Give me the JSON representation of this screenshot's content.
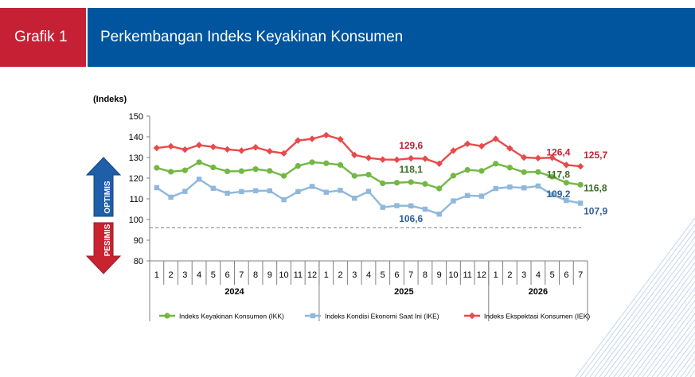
{
  "header": {
    "tag": "Grafik 1",
    "title": "Perkembangan Indeks Keyakinan Konsumen"
  },
  "chart_data": {
    "type": "line",
    "title": "Perkembangan Indeks Keyakinan Konsumen",
    "ylabel": "(Indeks)",
    "ylim": [
      80,
      150
    ],
    "yticks": [
      80,
      90,
      100,
      110,
      120,
      130,
      140,
      150
    ],
    "optimism_threshold": 100,
    "optimis_label": "OPTIMIS",
    "pesimis_label": "PESIMIS",
    "x_months": [
      "1",
      "2",
      "3",
      "4",
      "5",
      "6",
      "7",
      "8",
      "9",
      "10",
      "11",
      "12",
      "1",
      "2",
      "3",
      "4",
      "5",
      "6",
      "7",
      "8",
      "9",
      "10",
      "11",
      "12",
      "1",
      "2",
      "3",
      "4",
      "5",
      "6",
      "7"
    ],
    "years": [
      {
        "label": "2024",
        "count": 12
      },
      {
        "label": "2025",
        "count": 12
      },
      {
        "label": "2026",
        "count": 7
      }
    ],
    "grid": false,
    "legend_position": "bottom",
    "series": [
      {
        "name": "Indeks Keyakinan Konsumen (IKK)",
        "color": "#72b843",
        "marker": "circle",
        "values": [
          125.0,
          123.1,
          123.8,
          127.7,
          125.2,
          123.3,
          123.4,
          124.4,
          123.5,
          121.1,
          125.9,
          127.7,
          127.2,
          126.4,
          121.1,
          121.7,
          117.5,
          117.8,
          118.1,
          117.2,
          115.0,
          121.2,
          124.0,
          123.5,
          127.0,
          125.1,
          122.9,
          123.0,
          120.7,
          117.8,
          116.8
        ]
      },
      {
        "name": "Indeks Kondisi Ekonomi Saat Ini (IKE)",
        "color": "#8fb8dc",
        "marker": "square",
        "values": [
          115.4,
          110.8,
          113.6,
          119.5,
          115.1,
          112.7,
          113.5,
          113.9,
          113.9,
          109.6,
          113.5,
          116.0,
          113.2,
          114.1,
          110.3,
          113.6,
          105.9,
          106.7,
          106.6,
          105.0,
          102.6,
          109.0,
          111.6,
          111.3,
          115.0,
          115.7,
          115.3,
          116.2,
          112.0,
          109.2,
          107.9
        ]
      },
      {
        "name": "Indeks Ekspektasi Konsumen (IEK)",
        "color": "#e84a4a",
        "marker": "diamond",
        "values": [
          134.6,
          135.4,
          133.8,
          136.0,
          135.1,
          133.9,
          133.3,
          134.9,
          133.0,
          132.0,
          138.2,
          139.0,
          140.8,
          138.8,
          131.2,
          129.8,
          129.0,
          128.9,
          129.6,
          129.4,
          127.0,
          133.3,
          136.6,
          135.5,
          139.0,
          134.4,
          130.0,
          129.7,
          129.9,
          126.4,
          125.7
        ]
      }
    ],
    "annotations": [
      {
        "series": 2,
        "index": 18,
        "text": "129,6",
        "color": "#c62034"
      },
      {
        "series": 0,
        "index": 18,
        "text": "118,1",
        "color": "#3a6b24"
      },
      {
        "series": 1,
        "index": 18,
        "text": "106,6",
        "color": "#2e5f96"
      },
      {
        "series": 2,
        "index": 29,
        "text": "126,4",
        "color": "#c62034"
      },
      {
        "series": 2,
        "index": 30,
        "text": "125,7",
        "color": "#c62034"
      },
      {
        "series": 0,
        "index": 29,
        "text": "117,8",
        "color": "#3a6b24"
      },
      {
        "series": 0,
        "index": 30,
        "text": "116,8",
        "color": "#3a6b24"
      },
      {
        "series": 1,
        "index": 29,
        "text": "109,2",
        "color": "#2e5f96"
      },
      {
        "series": 1,
        "index": 30,
        "text": "107,9",
        "color": "#2e5f96"
      }
    ]
  }
}
